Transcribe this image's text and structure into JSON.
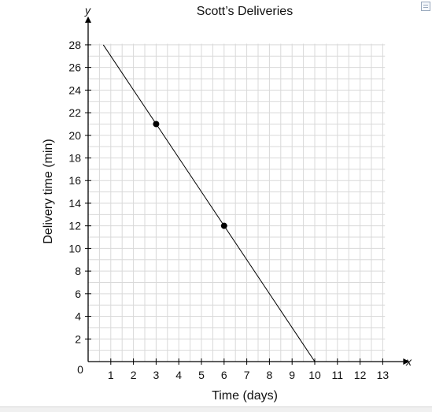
{
  "chart_data": {
    "type": "line",
    "title": "Scott’s Deliveries",
    "xlabel": "Time (days)",
    "ylabel": "Delivery time (min)",
    "x_axis_letter": "x",
    "y_axis_letter": "y",
    "origin_label": "0",
    "xlim": [
      0,
      13
    ],
    "ylim": [
      0,
      28
    ],
    "x_ticks": [
      1,
      2,
      3,
      4,
      5,
      6,
      7,
      8,
      9,
      10,
      11,
      12,
      13
    ],
    "y_ticks": [
      2,
      4,
      6,
      8,
      10,
      12,
      14,
      16,
      18,
      20,
      22,
      24,
      26,
      28
    ],
    "grid": true,
    "series": [
      {
        "line": [
          [
            0.67,
            28
          ],
          [
            10,
            0
          ]
        ],
        "points": [
          [
            3,
            21
          ],
          [
            6,
            12
          ]
        ]
      }
    ]
  },
  "colors": {
    "grid": "#d9d9d9",
    "axis": "#000000",
    "line": "#000000",
    "text": "#111111"
  }
}
